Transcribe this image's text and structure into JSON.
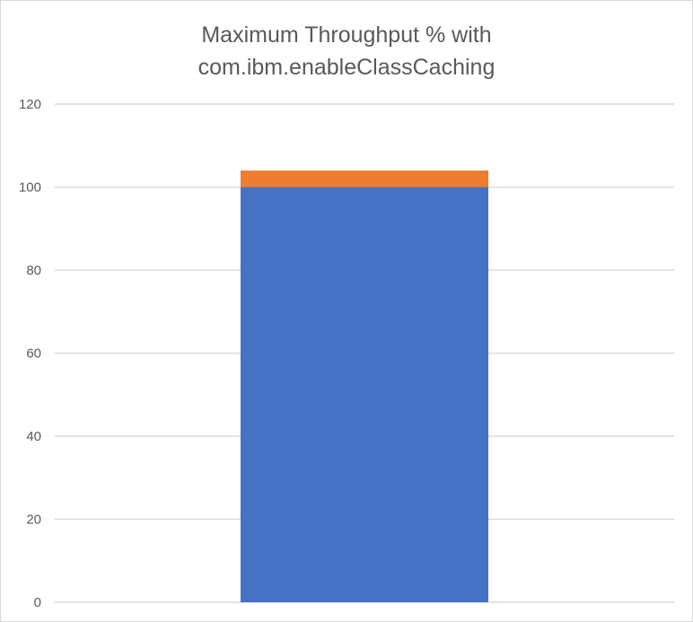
{
  "chart_data": {
    "type": "bar",
    "stacked": true,
    "title_lines": [
      "Maximum Throughput % with",
      "com.ibm.enableClassCaching"
    ],
    "categories": [
      ""
    ],
    "series": [
      {
        "values": [
          100
        ],
        "color": "#4472c4"
      },
      {
        "values": [
          4
        ],
        "color": "#ed7d31"
      }
    ],
    "ylim": [
      0,
      120
    ],
    "yticks": [
      0,
      20,
      40,
      60,
      80,
      100,
      120
    ],
    "xlabel": "",
    "ylabel": "",
    "grid": true,
    "legend": "none",
    "gridline_color": "#d9d9d9"
  }
}
